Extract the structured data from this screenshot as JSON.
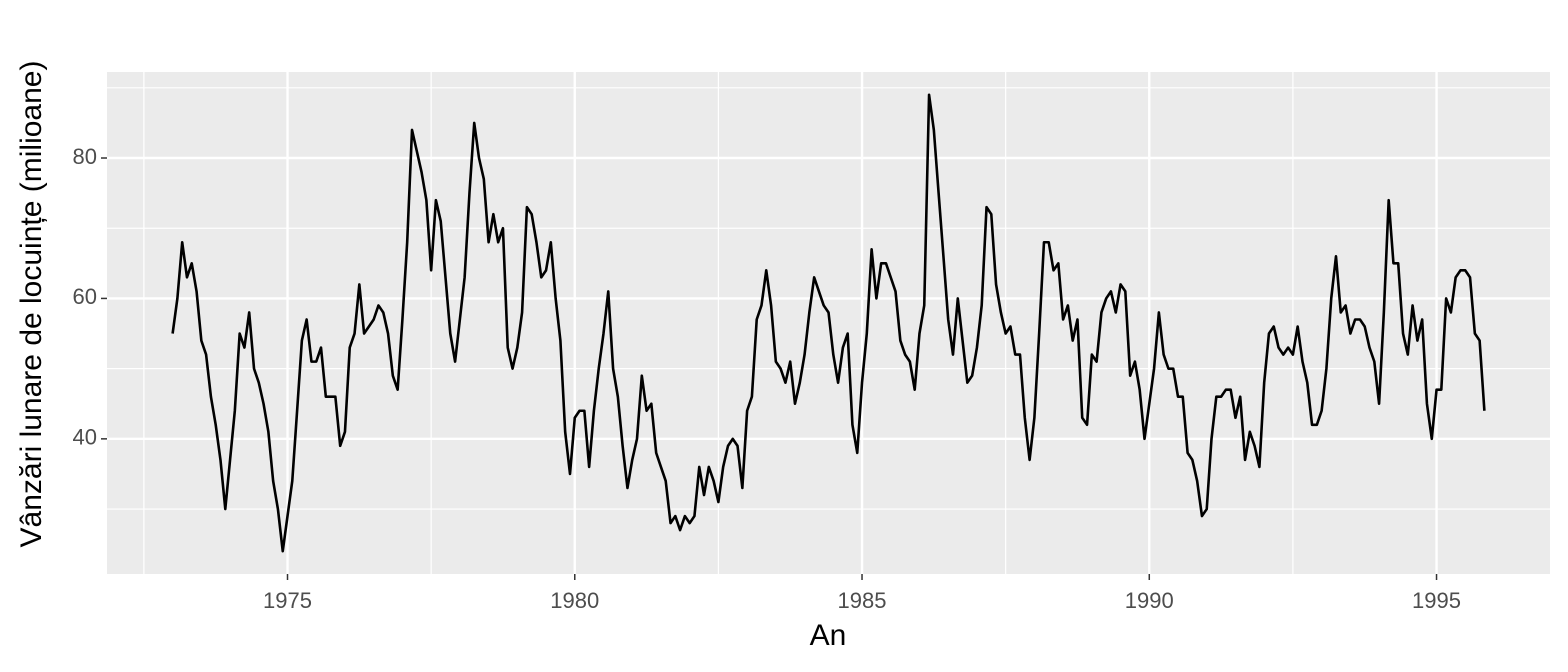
{
  "chart_data": {
    "type": "line",
    "x_label": "An",
    "y_label": "Vânzări lunare de locuințe (milioane)",
    "color": "#000000",
    "grid": true,
    "x": [
      1973,
      1973.083,
      1973.167,
      1973.25,
      1973.333,
      1973.417,
      1973.5,
      1973.583,
      1973.667,
      1973.75,
      1973.833,
      1973.917,
      1974,
      1974.083,
      1974.167,
      1974.25,
      1974.333,
      1974.417,
      1974.5,
      1974.583,
      1974.667,
      1974.75,
      1974.833,
      1974.917,
      1975,
      1975.083,
      1975.167,
      1975.25,
      1975.333,
      1975.417,
      1975.5,
      1975.583,
      1975.667,
      1975.75,
      1975.833,
      1975.917,
      1976,
      1976.083,
      1976.167,
      1976.25,
      1976.333,
      1976.417,
      1976.5,
      1976.583,
      1976.667,
      1976.75,
      1976.833,
      1976.917,
      1977,
      1977.083,
      1977.167,
      1977.25,
      1977.333,
      1977.417,
      1977.5,
      1977.583,
      1977.667,
      1977.75,
      1977.833,
      1977.917,
      1978,
      1978.083,
      1978.167,
      1978.25,
      1978.333,
      1978.417,
      1978.5,
      1978.583,
      1978.667,
      1978.75,
      1978.833,
      1978.917,
      1979,
      1979.083,
      1979.167,
      1979.25,
      1979.333,
      1979.417,
      1979.5,
      1979.583,
      1979.667,
      1979.75,
      1979.833,
      1979.917,
      1980,
      1980.083,
      1980.167,
      1980.25,
      1980.333,
      1980.417,
      1980.5,
      1980.583,
      1980.667,
      1980.75,
      1980.833,
      1980.917,
      1981,
      1981.083,
      1981.167,
      1981.25,
      1981.333,
      1981.417,
      1981.5,
      1981.583,
      1981.667,
      1981.75,
      1981.833,
      1981.917,
      1982,
      1982.083,
      1982.167,
      1982.25,
      1982.333,
      1982.417,
      1982.5,
      1982.583,
      1982.667,
      1982.75,
      1982.833,
      1982.917,
      1983,
      1983.083,
      1983.167,
      1983.25,
      1983.333,
      1983.417,
      1983.5,
      1983.583,
      1983.667,
      1983.75,
      1983.833,
      1983.917,
      1984,
      1984.083,
      1984.167,
      1984.25,
      1984.333,
      1984.417,
      1984.5,
      1984.583,
      1984.667,
      1984.75,
      1984.833,
      1984.917,
      1985,
      1985.083,
      1985.167,
      1985.25,
      1985.333,
      1985.417,
      1985.5,
      1985.583,
      1985.667,
      1985.75,
      1985.833,
      1985.917,
      1986,
      1986.083,
      1986.167,
      1986.25,
      1986.333,
      1986.417,
      1986.5,
      1986.583,
      1986.667,
      1986.75,
      1986.833,
      1986.917,
      1987,
      1987.083,
      1987.167,
      1987.25,
      1987.333,
      1987.417,
      1987.5,
      1987.583,
      1987.667,
      1987.75,
      1987.833,
      1987.917,
      1988,
      1988.083,
      1988.167,
      1988.25,
      1988.333,
      1988.417,
      1988.5,
      1988.583,
      1988.667,
      1988.75,
      1988.833,
      1988.917,
      1989,
      1989.083,
      1989.167,
      1989.25,
      1989.333,
      1989.417,
      1989.5,
      1989.583,
      1989.667,
      1989.75,
      1989.833,
      1989.917,
      1990,
      1990.083,
      1990.167,
      1990.25,
      1990.333,
      1990.417,
      1990.5,
      1990.583,
      1990.667,
      1990.75,
      1990.833,
      1990.917,
      1991,
      1991.083,
      1991.167,
      1991.25,
      1991.333,
      1991.417,
      1991.5,
      1991.583,
      1991.667,
      1991.75,
      1991.833,
      1991.917,
      1992,
      1992.083,
      1992.167,
      1992.25,
      1992.333,
      1992.417,
      1992.5,
      1992.583,
      1992.667,
      1992.75,
      1992.833,
      1992.917,
      1993,
      1993.083,
      1993.167,
      1993.25,
      1993.333,
      1993.417,
      1993.5,
      1993.583,
      1993.667,
      1993.75,
      1993.833,
      1993.917,
      1994,
      1994.083,
      1994.167,
      1994.25,
      1994.333,
      1994.417,
      1994.5,
      1994.583,
      1994.667,
      1994.75,
      1994.833,
      1994.917,
      1995,
      1995.083,
      1995.167,
      1995.25,
      1995.333,
      1995.417,
      1995.5,
      1995.583,
      1995.667,
      1995.75,
      1995.833
    ],
    "values": [
      55,
      60,
      68,
      63,
      65,
      61,
      54,
      52,
      46,
      42,
      37,
      30,
      37,
      44,
      55,
      53,
      58,
      50,
      48,
      45,
      41,
      34,
      30,
      24,
      29,
      34,
      44,
      54,
      57,
      51,
      51,
      53,
      46,
      46,
      46,
      39,
      41,
      53,
      55,
      62,
      55,
      56,
      57,
      59,
      58,
      55,
      49,
      47,
      57,
      68,
      84,
      81,
      78,
      74,
      64,
      74,
      71,
      63,
      55,
      51,
      57,
      63,
      75,
      85,
      80,
      77,
      68,
      72,
      68,
      70,
      53,
      50,
      53,
      58,
      73,
      72,
      68,
      63,
      64,
      68,
      60,
      54,
      41,
      35,
      43,
      44,
      44,
      36,
      44,
      50,
      55,
      61,
      50,
      46,
      39,
      33,
      37,
      40,
      49,
      44,
      45,
      38,
      36,
      34,
      28,
      29,
      27,
      29,
      28,
      29,
      36,
      32,
      36,
      34,
      31,
      36,
      39,
      40,
      39,
      33,
      44,
      46,
      57,
      59,
      64,
      59,
      51,
      50,
      48,
      51,
      45,
      48,
      52,
      58,
      63,
      61,
      59,
      58,
      52,
      48,
      53,
      55,
      42,
      38,
      48,
      55,
      67,
      60,
      65,
      65,
      63,
      61,
      54,
      52,
      51,
      47,
      55,
      59,
      89,
      84,
      75,
      66,
      57,
      52,
      60,
      54,
      48,
      49,
      53,
      59,
      73,
      72,
      62,
      58,
      55,
      56,
      52,
      52,
      43,
      37,
      43,
      55,
      68,
      68,
      64,
      65,
      57,
      59,
      54,
      57,
      43,
      42,
      52,
      51,
      58,
      60,
      61,
      58,
      62,
      61,
      49,
      51,
      47,
      40,
      45,
      50,
      58,
      52,
      50,
      50,
      46,
      46,
      38,
      37,
      34,
      29,
      30,
      40,
      46,
      46,
      47,
      47,
      43,
      46,
      37,
      41,
      39,
      36,
      48,
      55,
      56,
      53,
      52,
      53,
      52,
      56,
      51,
      48,
      42,
      42,
      44,
      50,
      60,
      66,
      58,
      59,
      55,
      57,
      57,
      56,
      53,
      51,
      45,
      58,
      74,
      65,
      65,
      55,
      52,
      59,
      54,
      57,
      45,
      40,
      47,
      47,
      60,
      58,
      63,
      64,
      64,
      63,
      55,
      54,
      44
    ],
    "xlim": [
      1971.858,
      1996.975
    ],
    "ylim": [
      20.75,
      92.25
    ],
    "xticks": [
      1975,
      1980,
      1985,
      1990,
      1995
    ],
    "yticks": [
      40,
      60,
      80
    ],
    "minor_xticks": [
      1972.5,
      1977.5,
      1982.5,
      1987.5,
      1992.5
    ],
    "minor_yticks": [
      30,
      50,
      70,
      90
    ]
  }
}
